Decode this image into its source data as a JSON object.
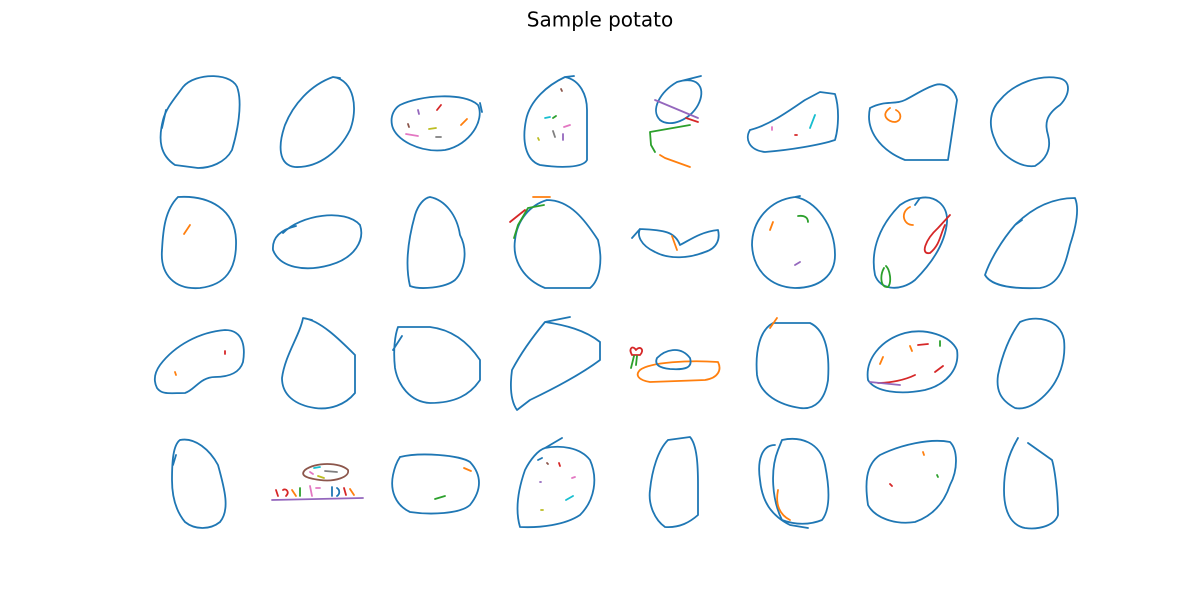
{
  "title": "Sample potato"
}
